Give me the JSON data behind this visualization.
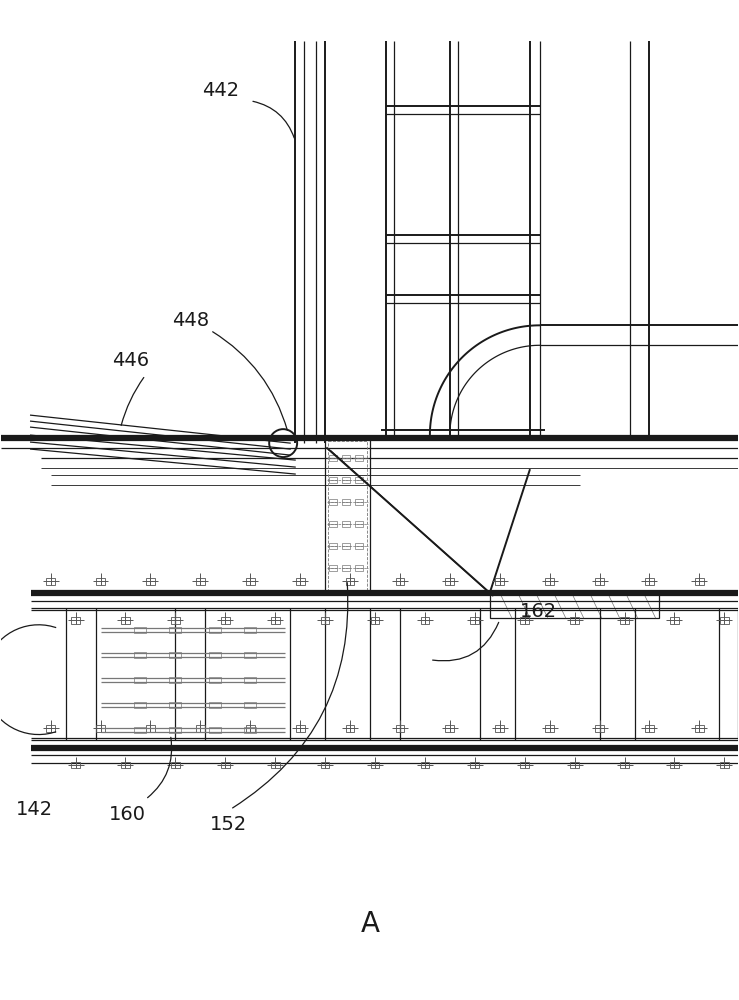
{
  "bg_color": "#ffffff",
  "line_color": "#1a1a1a",
  "dark_gray": "#555555",
  "mid_gray": "#777777",
  "fig_width": 7.39,
  "fig_height": 10.0,
  "title_label": "A",
  "lw_hair": 0.6,
  "lw_thin": 0.9,
  "lw_med": 1.4,
  "lw_thick": 2.5,
  "lw_vthick": 4.5
}
